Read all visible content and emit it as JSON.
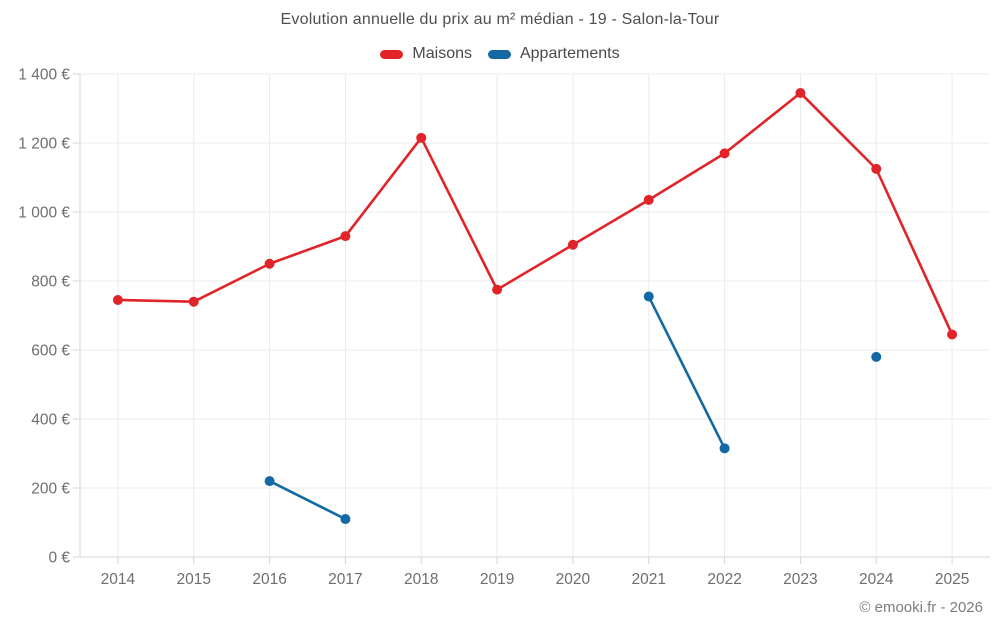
{
  "page": {
    "footer": "© emooki.fr - 2026"
  },
  "chart_data": {
    "type": "line",
    "title": "Evolution annuelle du prix au m² médian - 19 - Salon-la-Tour",
    "categories": [
      "2014",
      "2015",
      "2016",
      "2017",
      "2018",
      "2019",
      "2020",
      "2021",
      "2022",
      "2023",
      "2024",
      "2025"
    ],
    "series": [
      {
        "name": "Maisons",
        "color": "#e1242a",
        "values": [
          745,
          740,
          850,
          930,
          1215,
          775,
          905,
          1035,
          1170,
          1345,
          1125,
          645
        ]
      },
      {
        "name": "Appartements",
        "color": "#1469a5",
        "values": [
          null,
          null,
          220,
          110,
          null,
          null,
          null,
          755,
          315,
          null,
          580,
          null
        ]
      }
    ],
    "xlabel": "",
    "ylabel": "",
    "ylim": [
      0,
      1400
    ],
    "ytick_step": 200,
    "yticklabels": [
      "0 €",
      "200 €",
      "400 €",
      "600 €",
      "800 €",
      "1 000 €",
      "1 200 €",
      "1 400 €"
    ],
    "legend_position": "top",
    "grid": true,
    "attribution": "© emooki.fr - 2026"
  },
  "colors": {
    "grid": "#ebebeb",
    "axis": "#d4d4d4",
    "title_text": "#4f4f4f",
    "tick_text": "#6e6e6e",
    "footer_text": "#7d7d7d"
  }
}
